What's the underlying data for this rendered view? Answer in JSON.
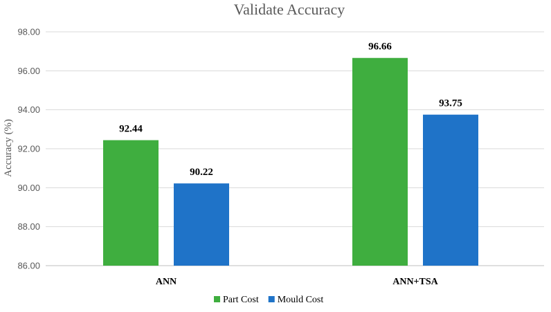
{
  "chart_data": {
    "type": "bar",
    "title": "Validate Accuracy",
    "xlabel": "",
    "ylabel": "Accuracy (%)",
    "categories": [
      "ANN",
      "ANN+TSA"
    ],
    "series": [
      {
        "name": "Part Cost",
        "values": [
          92.44,
          96.66
        ],
        "color": "#3fae3f"
      },
      {
        "name": "Mould Cost",
        "values": [
          90.22,
          93.75
        ],
        "color": "#1f73c8"
      }
    ],
    "ylim": [
      86,
      98
    ],
    "yticks": [
      "86.00",
      "88.00",
      "90.00",
      "92.00",
      "94.00",
      "96.00",
      "98.00"
    ],
    "data_labels": [
      [
        "92.44",
        "96.66"
      ],
      [
        "90.22",
        "93.75"
      ]
    ],
    "grid": true,
    "legend": "bottom"
  }
}
